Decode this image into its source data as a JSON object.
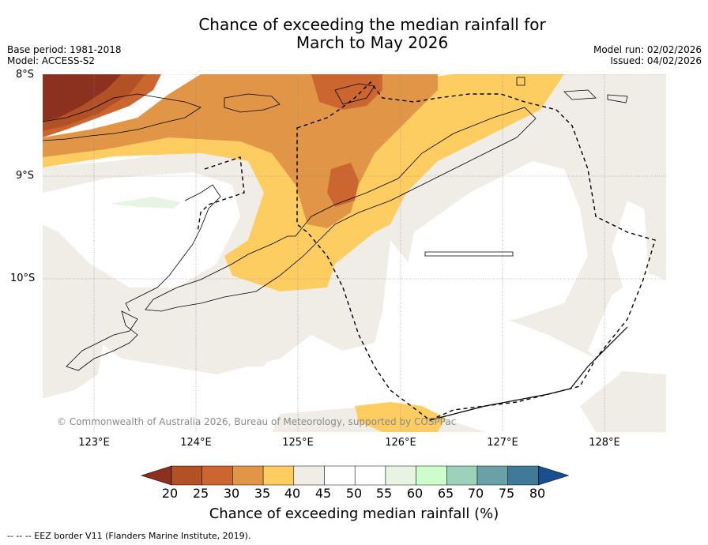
{
  "title_line1": "Chance of exceeding the median rainfall for",
  "title_line2": "March to May 2026",
  "base_period": "Base period: 1981-2018",
  "model": "Model: ACCESS-S2",
  "model_run": "Model run: 02/02/2026",
  "issued": "Issued: 04/02/2026",
  "lat_labels": [
    "8°S",
    "9°S",
    "10°S"
  ],
  "lon_labels": [
    "123°E",
    "124°E",
    "125°E",
    "126°E",
    "127°E",
    "128°E"
  ],
  "copyright": "© Commonwealth of Australia 2026, Bureau of Meteorology, supported by COSPPac",
  "colorbar": {
    "ticks": [
      "20",
      "25",
      "30",
      "35",
      "40",
      "45",
      "50",
      "55",
      "60",
      "65",
      "70",
      "75",
      "80"
    ],
    "colors": [
      "#b25026",
      "#cc6631",
      "#e09646",
      "#fdcd62",
      "#f0ece6",
      "#ffffff",
      "#ffffff",
      "#e7f4e4",
      "#ccfdcb",
      "#9dd1bb",
      "#6aa1a6",
      "#3f7b99"
    ],
    "low_color": "#8c3020",
    "high_color": "#194f8f",
    "label": "Chance of exceeding median rainfall (%)"
  },
  "legend_note": "--  --  -- EEZ border V11 (Flanders Marine Institute, 2019)."
}
